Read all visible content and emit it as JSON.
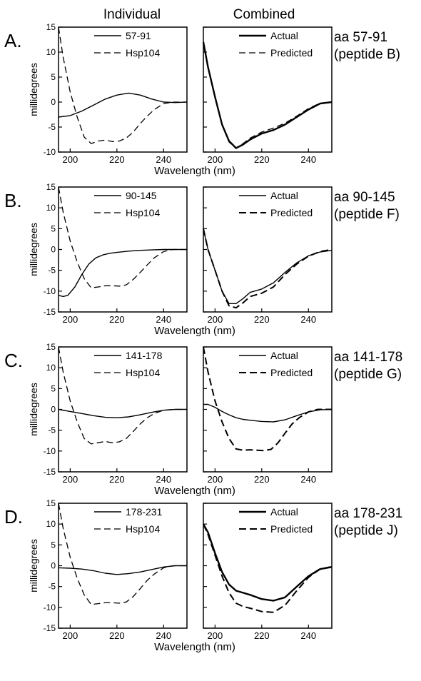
{
  "figure": {
    "col_headers": [
      "Individual",
      "Combined"
    ],
    "xlabel": "Wavelength (nm)",
    "ylabel": "millidegrees"
  },
  "chart_data": [
    {
      "panel": "A.",
      "side_label": [
        "aa 57-91",
        "(peptide B)"
      ],
      "type": "line",
      "xlim": [
        195,
        250
      ],
      "xticks": [
        200,
        220,
        240
      ],
      "ylim": [
        -10,
        15
      ],
      "yticks": [
        15,
        10,
        5,
        0,
        -5,
        -10
      ],
      "individual": {
        "series": [
          {
            "name": "57-91",
            "style": "solid",
            "x": [
              195,
              200,
              205,
              210,
              215,
              220,
              225,
              230,
              235,
              240,
              245,
              250
            ],
            "y": [
              -3,
              -2.7,
              -1.8,
              -0.6,
              0.6,
              1.4,
              1.8,
              1.4,
              0.6,
              0,
              -0.1,
              0
            ]
          },
          {
            "name": "Hsp104",
            "style": "dashed",
            "x": [
              195,
              197,
              200,
              203,
              206,
              209,
              212,
              215,
              218,
              221,
              224,
              227,
              230,
              233,
              236,
              240,
              244,
              248,
              250
            ],
            "y": [
              15,
              9,
              2,
              -3,
              -7,
              -8.3,
              -7.8,
              -7.6,
              -7.9,
              -7.8,
              -7.2,
              -6,
              -4.3,
              -2.8,
              -1.5,
              -0.3,
              0,
              0,
              0
            ]
          }
        ]
      },
      "combined": {
        "series": [
          {
            "name": "Actual",
            "style": "solid-thick",
            "x": [
              195,
              197,
              200,
              203,
              206,
              209,
              212,
              215,
              220,
              225,
              230,
              235,
              240,
              245,
              250
            ],
            "y": [
              12,
              7,
              1,
              -4.5,
              -7.8,
              -9.2,
              -8.5,
              -7.5,
              -6.3,
              -5.6,
              -4.5,
              -3,
              -1.5,
              -0.3,
              0
            ]
          },
          {
            "name": "Predicted",
            "style": "dashed",
            "x": [
              195,
              197,
              200,
              203,
              206,
              209,
              212,
              215,
              220,
              225,
              230,
              235,
              240,
              245,
              250
            ],
            "y": [
              12,
              6.8,
              1,
              -4.5,
              -8,
              -9.3,
              -8.3,
              -7.2,
              -6,
              -5.2,
              -4.2,
              -2.8,
              -1.3,
              -0.2,
              0
            ]
          }
        ]
      }
    },
    {
      "panel": "B.",
      "side_label": [
        "aa 90-145",
        "(peptide F)"
      ],
      "type": "line",
      "xlim": [
        195,
        250
      ],
      "xticks": [
        200,
        220,
        240
      ],
      "ylim": [
        -15,
        15
      ],
      "yticks": [
        15,
        10,
        5,
        0,
        -5,
        -10,
        -15
      ],
      "individual": {
        "series": [
          {
            "name": "90-145",
            "style": "solid",
            "x": [
              195,
              197,
              199,
              202,
              205,
              208,
              211,
              214,
              217,
              220,
              225,
              230,
              235,
              240,
              245,
              250
            ],
            "y": [
              -11,
              -11.3,
              -11,
              -9,
              -6,
              -3.5,
              -2,
              -1.3,
              -0.9,
              -0.7,
              -0.4,
              -0.2,
              -0.1,
              0,
              0,
              0
            ]
          },
          {
            "name": "Hsp104",
            "style": "dashed",
            "x": [
              195,
              197,
              200,
              203,
              206,
              209,
              212,
              215,
              218,
              221,
              224,
              227,
              230,
              233,
              236,
              240,
              244,
              248,
              250
            ],
            "y": [
              15,
              9,
              2,
              -3,
              -7,
              -9.2,
              -9,
              -8.7,
              -8.7,
              -8.8,
              -8.5,
              -7.2,
              -5.5,
              -3.7,
              -2,
              -0.5,
              0,
              0,
              0
            ]
          }
        ]
      },
      "combined": {
        "series": [
          {
            "name": "Actual",
            "style": "solid",
            "x": [
              195,
              197,
              200,
              203,
              206,
              209,
              212,
              215,
              220,
              225,
              230,
              235,
              240,
              245,
              250
            ],
            "y": [
              5,
              0,
              -5,
              -10,
              -13,
              -13,
              -11.8,
              -10.3,
              -9.5,
              -8,
              -5.5,
              -3.2,
              -1.5,
              -0.6,
              -0.2
            ]
          },
          {
            "name": "Predicted",
            "style": "dashed-thick",
            "x": [
              195,
              197,
              200,
              203,
              206,
              209,
              212,
              215,
              220,
              225,
              230,
              235,
              240,
              245,
              250
            ],
            "y": [
              5,
              0,
              -5,
              -10,
              -13.5,
              -14,
              -12.8,
              -11.3,
              -10.5,
              -9,
              -6,
              -3.5,
              -1.6,
              -0.5,
              0
            ]
          }
        ]
      }
    },
    {
      "panel": "C.",
      "side_label": [
        "aa 141-178",
        "(peptide G)"
      ],
      "type": "line",
      "xlim": [
        195,
        250
      ],
      "xticks": [
        200,
        220,
        240
      ],
      "ylim": [
        -15,
        15
      ],
      "yticks": [
        15,
        10,
        5,
        0,
        -5,
        -10,
        -15
      ],
      "individual": {
        "series": [
          {
            "name": "141-178",
            "style": "solid",
            "x": [
              195,
              200,
              205,
              210,
              215,
              220,
              225,
              230,
              235,
              240,
              245,
              250
            ],
            "y": [
              0,
              -0.5,
              -1,
              -1.5,
              -1.9,
              -2,
              -1.8,
              -1.3,
              -0.7,
              -0.2,
              0,
              0
            ]
          },
          {
            "name": "Hsp104",
            "style": "dashed",
            "x": [
              195,
              197,
              200,
              203,
              206,
              209,
              212,
              215,
              218,
              221,
              224,
              227,
              230,
              233,
              236,
              240,
              244,
              248,
              250
            ],
            "y": [
              15,
              9,
              2,
              -3,
              -7,
              -8.3,
              -8,
              -7.7,
              -8,
              -7.8,
              -7,
              -5.3,
              -3.5,
              -2,
              -1,
              -0.2,
              0,
              0,
              0
            ]
          }
        ]
      },
      "combined": {
        "series": [
          {
            "name": "Actual",
            "style": "solid",
            "x": [
              195,
              197,
              200,
              203,
              206,
              209,
              212,
              215,
              220,
              225,
              230,
              235,
              240,
              245,
              250
            ],
            "y": [
              1.2,
              1.2,
              0.5,
              -0.5,
              -1.3,
              -2,
              -2.4,
              -2.6,
              -2.9,
              -3,
              -2.5,
              -1.5,
              -0.6,
              -0.1,
              0
            ]
          },
          {
            "name": "Predicted",
            "style": "dashed-thick",
            "x": [
              195,
              197,
              200,
              203,
              206,
              209,
              212,
              215,
              218,
              221,
              224,
              227,
              230,
              233,
              236,
              240,
              244,
              248,
              250
            ],
            "y": [
              15,
              9,
              2,
              -3,
              -7,
              -9.5,
              -9.8,
              -9.7,
              -9.8,
              -9.9,
              -9.6,
              -8,
              -5.7,
              -3.5,
              -2,
              -0.6,
              0,
              0,
              0
            ]
          }
        ]
      }
    },
    {
      "panel": "D.",
      "side_label": [
        "aa 178-231",
        "(peptide J)"
      ],
      "type": "line",
      "xlim": [
        195,
        250
      ],
      "xticks": [
        200,
        220,
        240
      ],
      "ylim": [
        -15,
        15
      ],
      "yticks": [
        15,
        10,
        5,
        0,
        -5,
        -10,
        -15
      ],
      "individual": {
        "series": [
          {
            "name": "178-231",
            "style": "solid",
            "x": [
              195,
              200,
              205,
              210,
              215,
              220,
              225,
              230,
              235,
              240,
              245,
              250
            ],
            "y": [
              -0.5,
              -0.6,
              -0.8,
              -1.2,
              -1.8,
              -2.1,
              -1.9,
              -1.5,
              -0.9,
              -0.3,
              0,
              0
            ]
          },
          {
            "name": "Hsp104",
            "style": "dashed",
            "x": [
              195,
              197,
              200,
              203,
              206,
              209,
              212,
              215,
              218,
              221,
              224,
              227,
              230,
              233,
              236,
              240,
              244,
              248,
              250
            ],
            "y": [
              15,
              9,
              2,
              -3,
              -7,
              -9.3,
              -9.1,
              -8.9,
              -8.9,
              -9,
              -8.7,
              -7.4,
              -5.5,
              -3.5,
              -2,
              -0.5,
              0,
              0,
              0
            ]
          }
        ]
      },
      "combined": {
        "series": [
          {
            "name": "Actual",
            "style": "solid-thick",
            "x": [
              195,
              197,
              200,
              203,
              206,
              209,
              212,
              215,
              220,
              225,
              230,
              235,
              240,
              245,
              250
            ],
            "y": [
              10,
              8,
              3,
              -1.5,
              -4.5,
              -6,
              -6.5,
              -7,
              -8,
              -8.4,
              -7.6,
              -5,
              -2.5,
              -0.8,
              -0.3
            ]
          },
          {
            "name": "Predicted",
            "style": "dashed-thick",
            "x": [
              195,
              197,
              200,
              203,
              206,
              209,
              212,
              215,
              220,
              225,
              230,
              235,
              240,
              245,
              250
            ],
            "y": [
              10,
              7.5,
              2.5,
              -2.5,
              -6.5,
              -9,
              -9.8,
              -10.2,
              -11,
              -11.2,
              -9.5,
              -6,
              -2.8,
              -0.8,
              -0.2
            ]
          }
        ]
      }
    }
  ]
}
